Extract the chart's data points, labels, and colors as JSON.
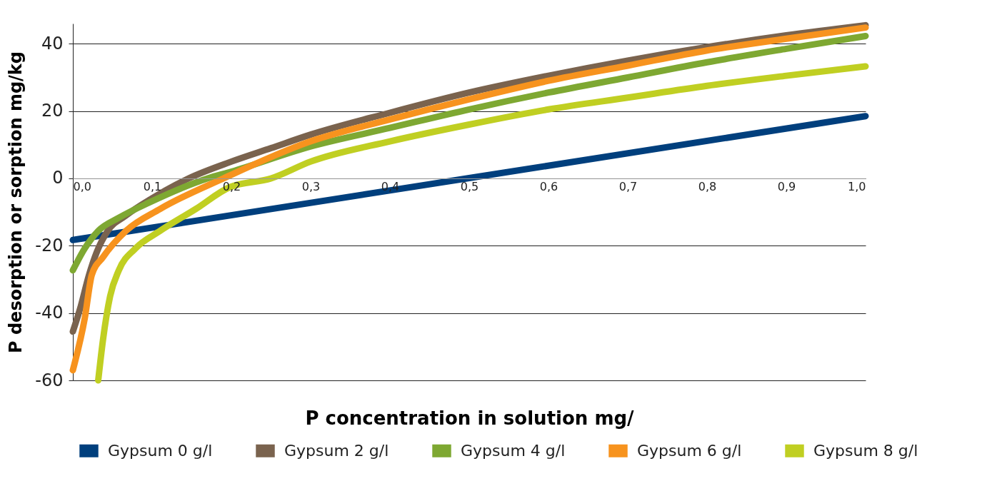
{
  "chart_data": {
    "type": "line",
    "xlabel": "P concentration in solution mg/",
    "ylabel": "P desorption or sorption mg/kg",
    "xlim": [
      0,
      1
    ],
    "ylim": [
      -60,
      46
    ],
    "xticks": [
      {
        "value": 0,
        "label": "0,0"
      },
      {
        "value": 0.1,
        "label": "0,1"
      },
      {
        "value": 0.2,
        "label": "0,2"
      },
      {
        "value": 0.3,
        "label": "0,3"
      },
      {
        "value": 0.4,
        "label": "0,4"
      },
      {
        "value": 0.5,
        "label": "0,5"
      },
      {
        "value": 0.6,
        "label": "0,6"
      },
      {
        "value": 0.7,
        "label": "0,7"
      },
      {
        "value": 0.8,
        "label": "0,8"
      },
      {
        "value": 0.9,
        "label": "0,9"
      },
      {
        "value": 1,
        "label": "1,0"
      }
    ],
    "yticks": [
      -60,
      -40,
      -20,
      0,
      20,
      40
    ],
    "grid": "y",
    "legend": "bottom",
    "line_style": "solid",
    "marker": "none",
    "series": [
      {
        "name": "Gypsum 0 g/l",
        "color": "#003f7d",
        "x": [
          0,
          0.5,
          1
        ],
        "values": [
          -18.3,
          0.1,
          18.5
        ]
      },
      {
        "name": "Gypsum 2 g/l",
        "color": "#7a634e",
        "x": [
          0,
          0.01,
          0.02,
          0.03,
          0.044,
          0.067,
          0.1,
          0.146,
          0.2,
          0.25,
          0.3,
          0.4,
          0.5,
          0.6,
          0.7,
          0.8,
          0.9,
          1
        ],
        "values": [
          -45.5,
          -38,
          -29,
          -22,
          -15.6,
          -11,
          -5.9,
          0,
          5,
          9,
          13,
          19.5,
          25.5,
          30.5,
          35,
          39,
          42.5,
          45.5
        ]
      },
      {
        "name": "Gypsum 4 g/l",
        "color": "#7ea832",
        "x": [
          0,
          0.015,
          0.032,
          0.058,
          0.096,
          0.17,
          0.2,
          0.3,
          0.4,
          0.5,
          0.6,
          0.7,
          0.8,
          0.9,
          1
        ],
        "values": [
          -27.3,
          -20.8,
          -15.6,
          -11.7,
          -7.2,
          0,
          2,
          9.5,
          15,
          20.5,
          25.5,
          30,
          34.5,
          38.5,
          42.3
        ]
      },
      {
        "name": "Gypsum 6 g/l",
        "color": "#f7931e",
        "x": [
          0,
          0.015,
          0.024,
          0.038,
          0.067,
          0.11,
          0.19,
          0.3,
          0.4,
          0.5,
          0.6,
          0.7,
          0.8,
          0.9,
          1
        ],
        "values": [
          -57,
          -41.6,
          -28.6,
          -23.4,
          -15.6,
          -9.1,
          0,
          11,
          17.5,
          23.5,
          29,
          33.5,
          38,
          41.5,
          44.8
        ]
      },
      {
        "name": "Gypsum 8 g/l",
        "color": "#c0cf22",
        "x": [
          0.032,
          0.038,
          0.047,
          0.058,
          0.079,
          0.11,
          0.155,
          0.198,
          0.25,
          0.3,
          0.4,
          0.5,
          0.6,
          0.7,
          0.8,
          0.9,
          1
        ],
        "values": [
          -60,
          -48,
          -35,
          -27.3,
          -20.8,
          -15.6,
          -9.1,
          -2.6,
          0,
          5,
          11,
          16,
          20.5,
          24,
          27.5,
          30.5,
          33.3
        ]
      }
    ]
  }
}
